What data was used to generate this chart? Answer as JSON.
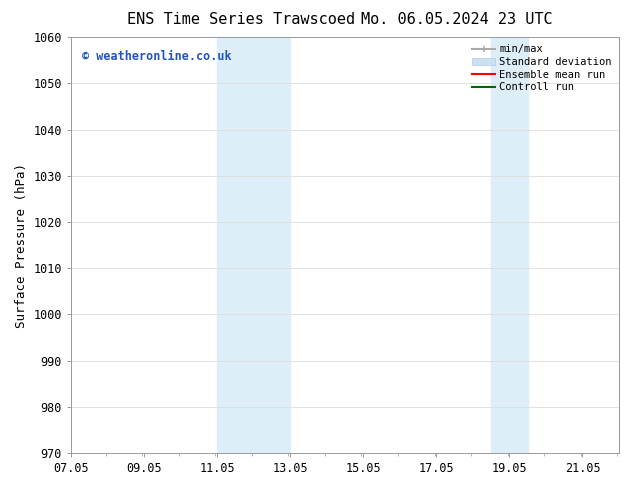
{
  "title_left": "ENS Time Series Trawscoed",
  "title_right": "Mo. 06.05.2024 23 UTC",
  "ylabel": "Surface Pressure (hPa)",
  "ylim": [
    970,
    1060
  ],
  "yticks": [
    970,
    980,
    990,
    1000,
    1010,
    1020,
    1030,
    1040,
    1050,
    1060
  ],
  "xlim_start": 7.05,
  "xlim_end": 22.05,
  "xtick_labels": [
    "07.05",
    "09.05",
    "11.05",
    "13.05",
    "15.05",
    "17.05",
    "19.05",
    "21.05"
  ],
  "xtick_positions": [
    7.05,
    9.05,
    11.05,
    13.05,
    15.05,
    17.05,
    19.05,
    21.05
  ],
  "shaded_bands": [
    {
      "x_start": 11.05,
      "x_end": 13.05
    },
    {
      "x_start": 18.55,
      "x_end": 19.55
    }
  ],
  "shade_color": "#ddeef8",
  "watermark_text": "© weatheronline.co.uk",
  "watermark_color": "#2255bb",
  "legend_items": [
    {
      "label": "min/max",
      "color": "#aaaaaa",
      "lw": 1.5
    },
    {
      "label": "Standard deviation",
      "color": "#cce0f0",
      "lw": 8
    },
    {
      "label": "Ensemble mean run",
      "color": "#ff0000",
      "lw": 1.5
    },
    {
      "label": "Controll run",
      "color": "#006600",
      "lw": 1.5
    }
  ],
  "bg_color": "#ffffff",
  "grid_color": "#dddddd",
  "title_fontsize": 11,
  "axis_label_fontsize": 9,
  "tick_fontsize": 8.5,
  "watermark_fontsize": 8.5,
  "legend_fontsize": 7.5
}
